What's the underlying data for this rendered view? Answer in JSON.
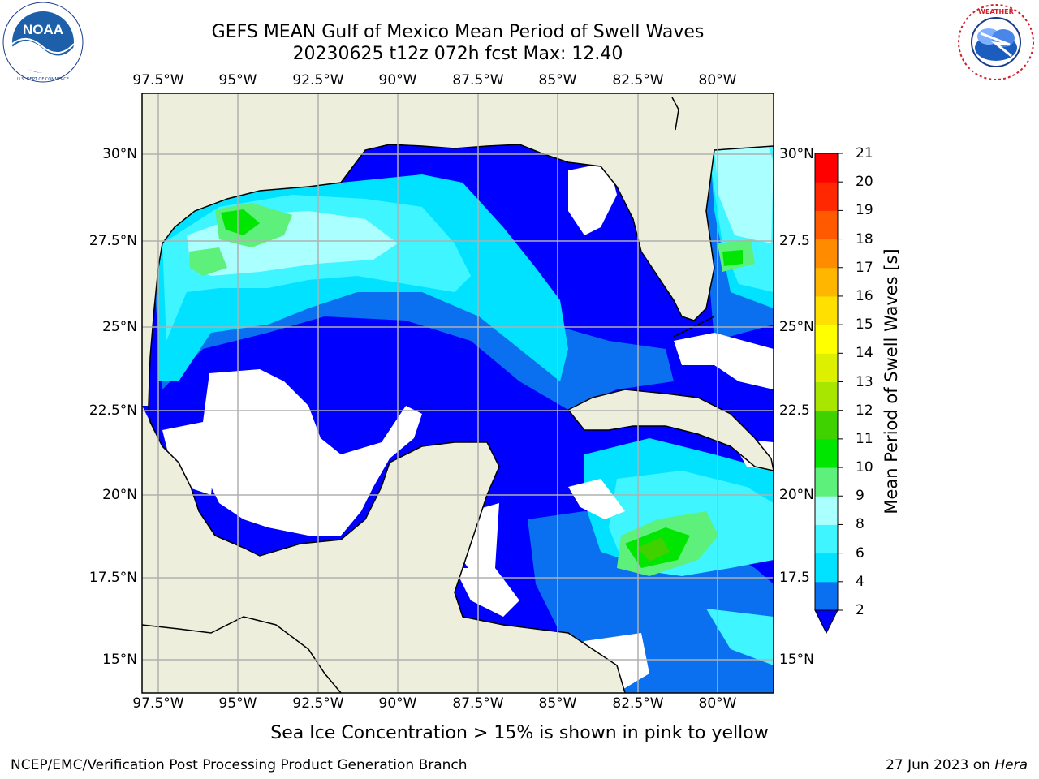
{
  "header": {
    "title_line1": "GEFS MEAN Gulf of Mexico Mean Period of Swell Waves",
    "title_line2": "20230625 t12z 072h fcst   Max: 12.40"
  },
  "logos": {
    "left": {
      "icon": "noaa-logo-icon",
      "text": "NOAA",
      "ring_text": "NATIONAL OCEANIC AND ATMOSPHERIC ADMINISTRATION · U.S. DEPARTMENT OF COMMERCE"
    },
    "right": {
      "icon": "nws-logo-icon",
      "ring_text": "NATIONAL WEATHER SERVICE"
    }
  },
  "map": {
    "lon_labels": [
      "97.5°W",
      "95°W",
      "92.5°W",
      "90°W",
      "87.5°W",
      "85°W",
      "82.5°W",
      "80°W"
    ],
    "lat_labels_left": [
      "30°N",
      "27.5°N",
      "25°N",
      "22.5°N",
      "20°N",
      "17.5°N",
      "15°N"
    ],
    "lat_labels_right": [
      "30°N",
      "27.5",
      "25°N",
      "22.5",
      "20°N",
      "17.5",
      "15°N"
    ],
    "extent": {
      "lon_min": -98.0,
      "lon_max": -78.2,
      "lat_min": 14.0,
      "lat_max": 31.8
    },
    "colors": {
      "land": "#eeeedd",
      "no_data": "#ffffff",
      "grid": "#b0b0b0",
      "coast": "#000000"
    }
  },
  "colorbar": {
    "label": "Mean Period of Swell Waves [s]",
    "ticks": [
      "2",
      "4",
      "6",
      "8",
      "9",
      "10",
      "11",
      "12",
      "13",
      "14",
      "15",
      "16",
      "17",
      "18",
      "19",
      "20",
      "21"
    ],
    "colors": [
      "#0a70f0",
      "#00e2ff",
      "#3ff5ff",
      "#aaffff",
      "#5df07a",
      "#00e600",
      "#3fd200",
      "#a8e600",
      "#ddf000",
      "#ffff00",
      "#ffe000",
      "#ffb600",
      "#ff8c00",
      "#ff5a00",
      "#ff2800",
      "#ff0000"
    ],
    "under_color": "#0000ff"
  },
  "footer": {
    "note": "Sea Ice Concentration > 15% is shown in pink to yellow",
    "left": "NCEP/EMC/Verification Post Processing Product Generation Branch",
    "right_date": "27 Jun 2023 on ",
    "right_host": "Hera"
  }
}
